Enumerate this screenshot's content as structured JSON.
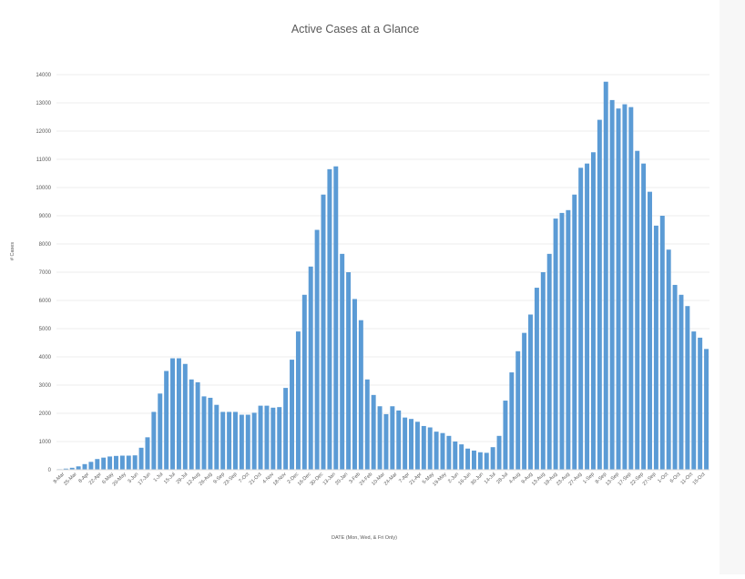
{
  "chart_data": {
    "type": "bar",
    "title": "Active Cases at a Glance",
    "xlabel": "DATE  (Mon, Wed, & Fri Only)",
    "ylabel": "# Cases",
    "ylim": [
      0,
      14000
    ],
    "yticks": [
      0,
      1000,
      2000,
      3000,
      4000,
      5000,
      6000,
      7000,
      8000,
      9000,
      10000,
      11000,
      12000,
      13000,
      14000
    ],
    "grid": true,
    "bar_color": "#5b9bd5",
    "tick_labels": [
      "8-Mar",
      "25-Mar",
      "8-Apr",
      "22-Apr",
      "6-May",
      "20-May",
      "3-Jun",
      "17-Jun",
      "1-Jul",
      "15-Jul",
      "29-Jul",
      "12-Aug",
      "26-Aug",
      "9-Sep",
      "23-Sep",
      "7-Oct",
      "21-Oct",
      "4-Nov",
      "18-Nov",
      "2-Dec",
      "16-Dec",
      "30-Dec",
      "13-Jan",
      "20-Jan",
      "3-Feb",
      "24-Feb",
      "10-Mar",
      "24-Mar",
      "7-Apr",
      "21-Apr",
      "5-May",
      "19-May",
      "2-Jun",
      "16-Jun",
      "30-Jun",
      "14-Jul",
      "28-Jul",
      "4-Aug",
      "9-Aug",
      "13-Aug",
      "18-Aug",
      "23-Aug",
      "27-Aug",
      "1-Sep",
      "8-Sep",
      "13-Sep",
      "17-Sep",
      "22-Sep",
      "27-Sep",
      "1-Oct",
      "6-Oct",
      "11-Oct",
      "15-Oct"
    ],
    "values": [
      20,
      40,
      70,
      120,
      200,
      280,
      380,
      430,
      470,
      490,
      500,
      500,
      510,
      780,
      1150,
      2050,
      2700,
      3500,
      3950,
      3950,
      3750,
      3200,
      3100,
      2600,
      2550,
      2300,
      2050,
      2050,
      2050,
      1950,
      1950,
      2020,
      2270,
      2270,
      2200,
      2220,
      2900,
      3900,
      4900,
      6200,
      7200,
      8500,
      9750,
      10650,
      10750,
      7650,
      7000,
      6050,
      5300,
      3200,
      2650,
      2250,
      1970,
      2250,
      2100,
      1850,
      1800,
      1700,
      1550,
      1500,
      1350,
      1300,
      1200,
      1000,
      900,
      750,
      680,
      620,
      600,
      800,
      1200,
      2450,
      3450,
      4200,
      4850,
      5500,
      6450,
      7000,
      7650,
      8900,
      9100,
      9200,
      9750,
      10700,
      10850,
      11250,
      12400,
      13750,
      13100,
      12800,
      12950,
      12850,
      11300,
      10850,
      9850,
      8650,
      9000,
      7800,
      6550,
      6200,
      5800,
      4900,
      4680,
      4280
    ]
  }
}
